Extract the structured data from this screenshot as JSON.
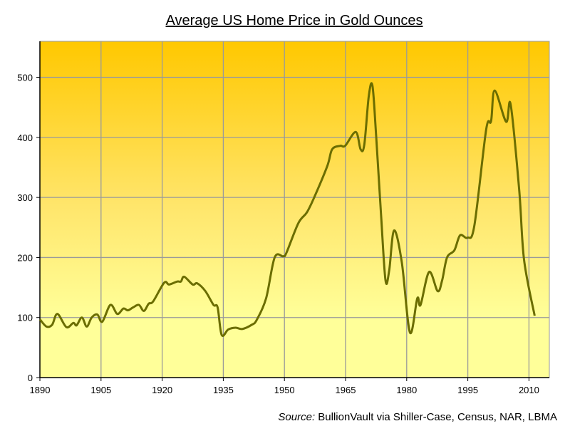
{
  "chart_data": {
    "type": "line",
    "title": "Average US Home Price in Gold Ounces",
    "source_label": "Source:",
    "source_text": "BullionVault via Shiller-Case, Census, NAR, LBMA",
    "xlabel": "",
    "ylabel": "",
    "xlim": [
      1890,
      2015
    ],
    "ylim": [
      0,
      560
    ],
    "grid": true,
    "x_ticks": [
      1890,
      1905,
      1920,
      1935,
      1950,
      1965,
      1980,
      1995,
      2010
    ],
    "y_ticks": [
      0,
      100,
      200,
      300,
      400,
      500
    ],
    "colors": {
      "line": "#6b6d00",
      "bg_top": "#ffc800",
      "bg_mid": "#ffe56a",
      "bg_bottom": "#ffff99",
      "grid": "#9a9a9a"
    },
    "series": [
      {
        "name": "Average US Home Price in Gold Ounces",
        "x": [
          1890,
          1891.6,
          1893,
          1894.3,
          1896.5,
          1898.2,
          1899,
          1900.3,
          1901.5,
          1902.7,
          1904.1,
          1905.3,
          1907.3,
          1909,
          1910.5,
          1911.6,
          1912.9,
          1914.3,
          1915.5,
          1916.7,
          1917.8,
          1920.5,
          1921.7,
          1923.7,
          1924.6,
          1925.4,
          1927.5,
          1928.6,
          1930.6,
          1932.6,
          1933.6,
          1934.6,
          1936.2,
          1938,
          1939.7,
          1942,
          1943.2,
          1945.5,
          1947.6,
          1949.7,
          1950.5,
          1953.4,
          1955.5,
          1957.3,
          1960.5,
          1961.7,
          1963.7,
          1964.9,
          1967.5,
          1968.7,
          1969.6,
          1970.7,
          1971.6,
          1972.5,
          1973.7,
          1974.8,
          1975.7,
          1976.9,
          1978.8,
          1980.8,
          1982.6,
          1983.4,
          1985.5,
          1987.6,
          1988.7,
          1989.9,
          1991.7,
          1993.1,
          1994.9,
          1996.6,
          1999.5,
          2000.7,
          2001.6,
          2004.4,
          2005.5,
          2007.6,
          2008.8,
          2011.4
        ],
        "y": [
          97,
          85,
          88,
          106,
          84,
          91,
          87,
          100,
          85,
          100,
          105,
          93,
          121,
          106,
          115,
          112,
          117,
          121,
          111,
          123,
          127,
          158,
          155,
          160,
          160,
          168,
          155,
          157,
          144,
          121,
          117,
          71,
          80,
          83,
          81,
          88,
          96,
          132,
          200,
          202,
          208,
          257,
          275,
          300,
          352,
          380,
          386,
          386,
          409,
          380,
          388,
          469,
          486,
          403,
          272,
          162,
          178,
          245,
          192,
          75,
          132,
          121,
          176,
          144,
          162,
          200,
          212,
          237,
          233,
          253,
          413,
          427,
          478,
          426,
          455,
          313,
          196,
          103
        ]
      }
    ]
  }
}
